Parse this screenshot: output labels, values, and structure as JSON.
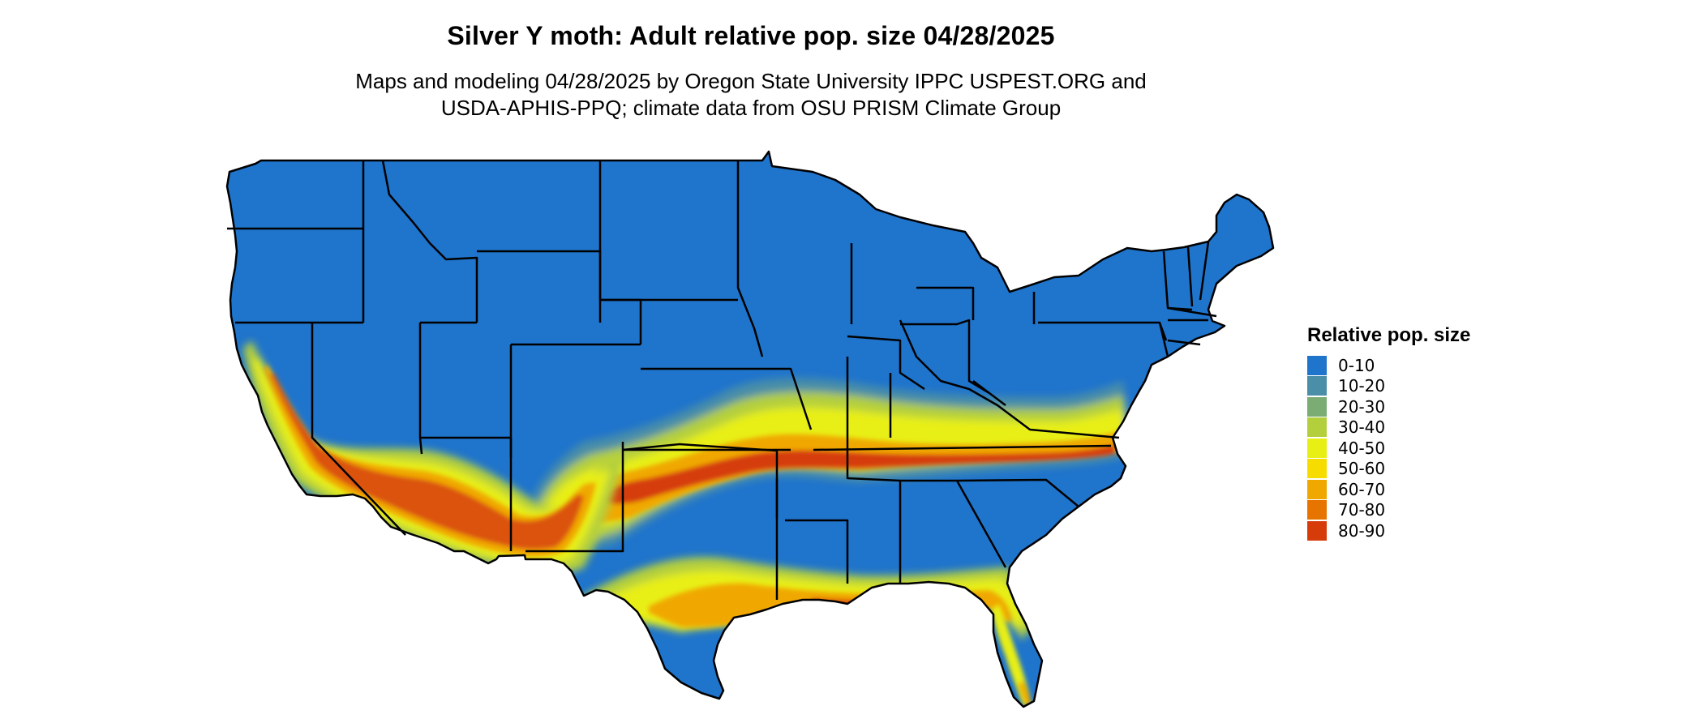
{
  "title": "Silver Y moth: Adult relative pop. size 04/28/2025",
  "subtitle_lines": [
    "Maps and modeling 04/28/2025 by Oregon State University IPPC USPEST.ORG and",
    "USDA-APHIS-PPQ; climate data from OSU PRISM Climate Group"
  ],
  "legend": {
    "title": "Relative pop. size",
    "items": [
      {
        "label": "0-10",
        "color": "#1f74cc"
      },
      {
        "label": "10-20",
        "color": "#4a8ea8"
      },
      {
        "label": "20-30",
        "color": "#7aac74"
      },
      {
        "label": "30-40",
        "color": "#b4cf3c"
      },
      {
        "label": "40-50",
        "color": "#e8ef14"
      },
      {
        "label": "50-60",
        "color": "#f7dc00"
      },
      {
        "label": "60-70",
        "color": "#f0a800"
      },
      {
        "label": "70-80",
        "color": "#e87400"
      },
      {
        "label": "80-90",
        "color": "#d63c0a"
      }
    ]
  },
  "colors": {
    "land": "#1f74cc",
    "state_border": "#000000"
  }
}
